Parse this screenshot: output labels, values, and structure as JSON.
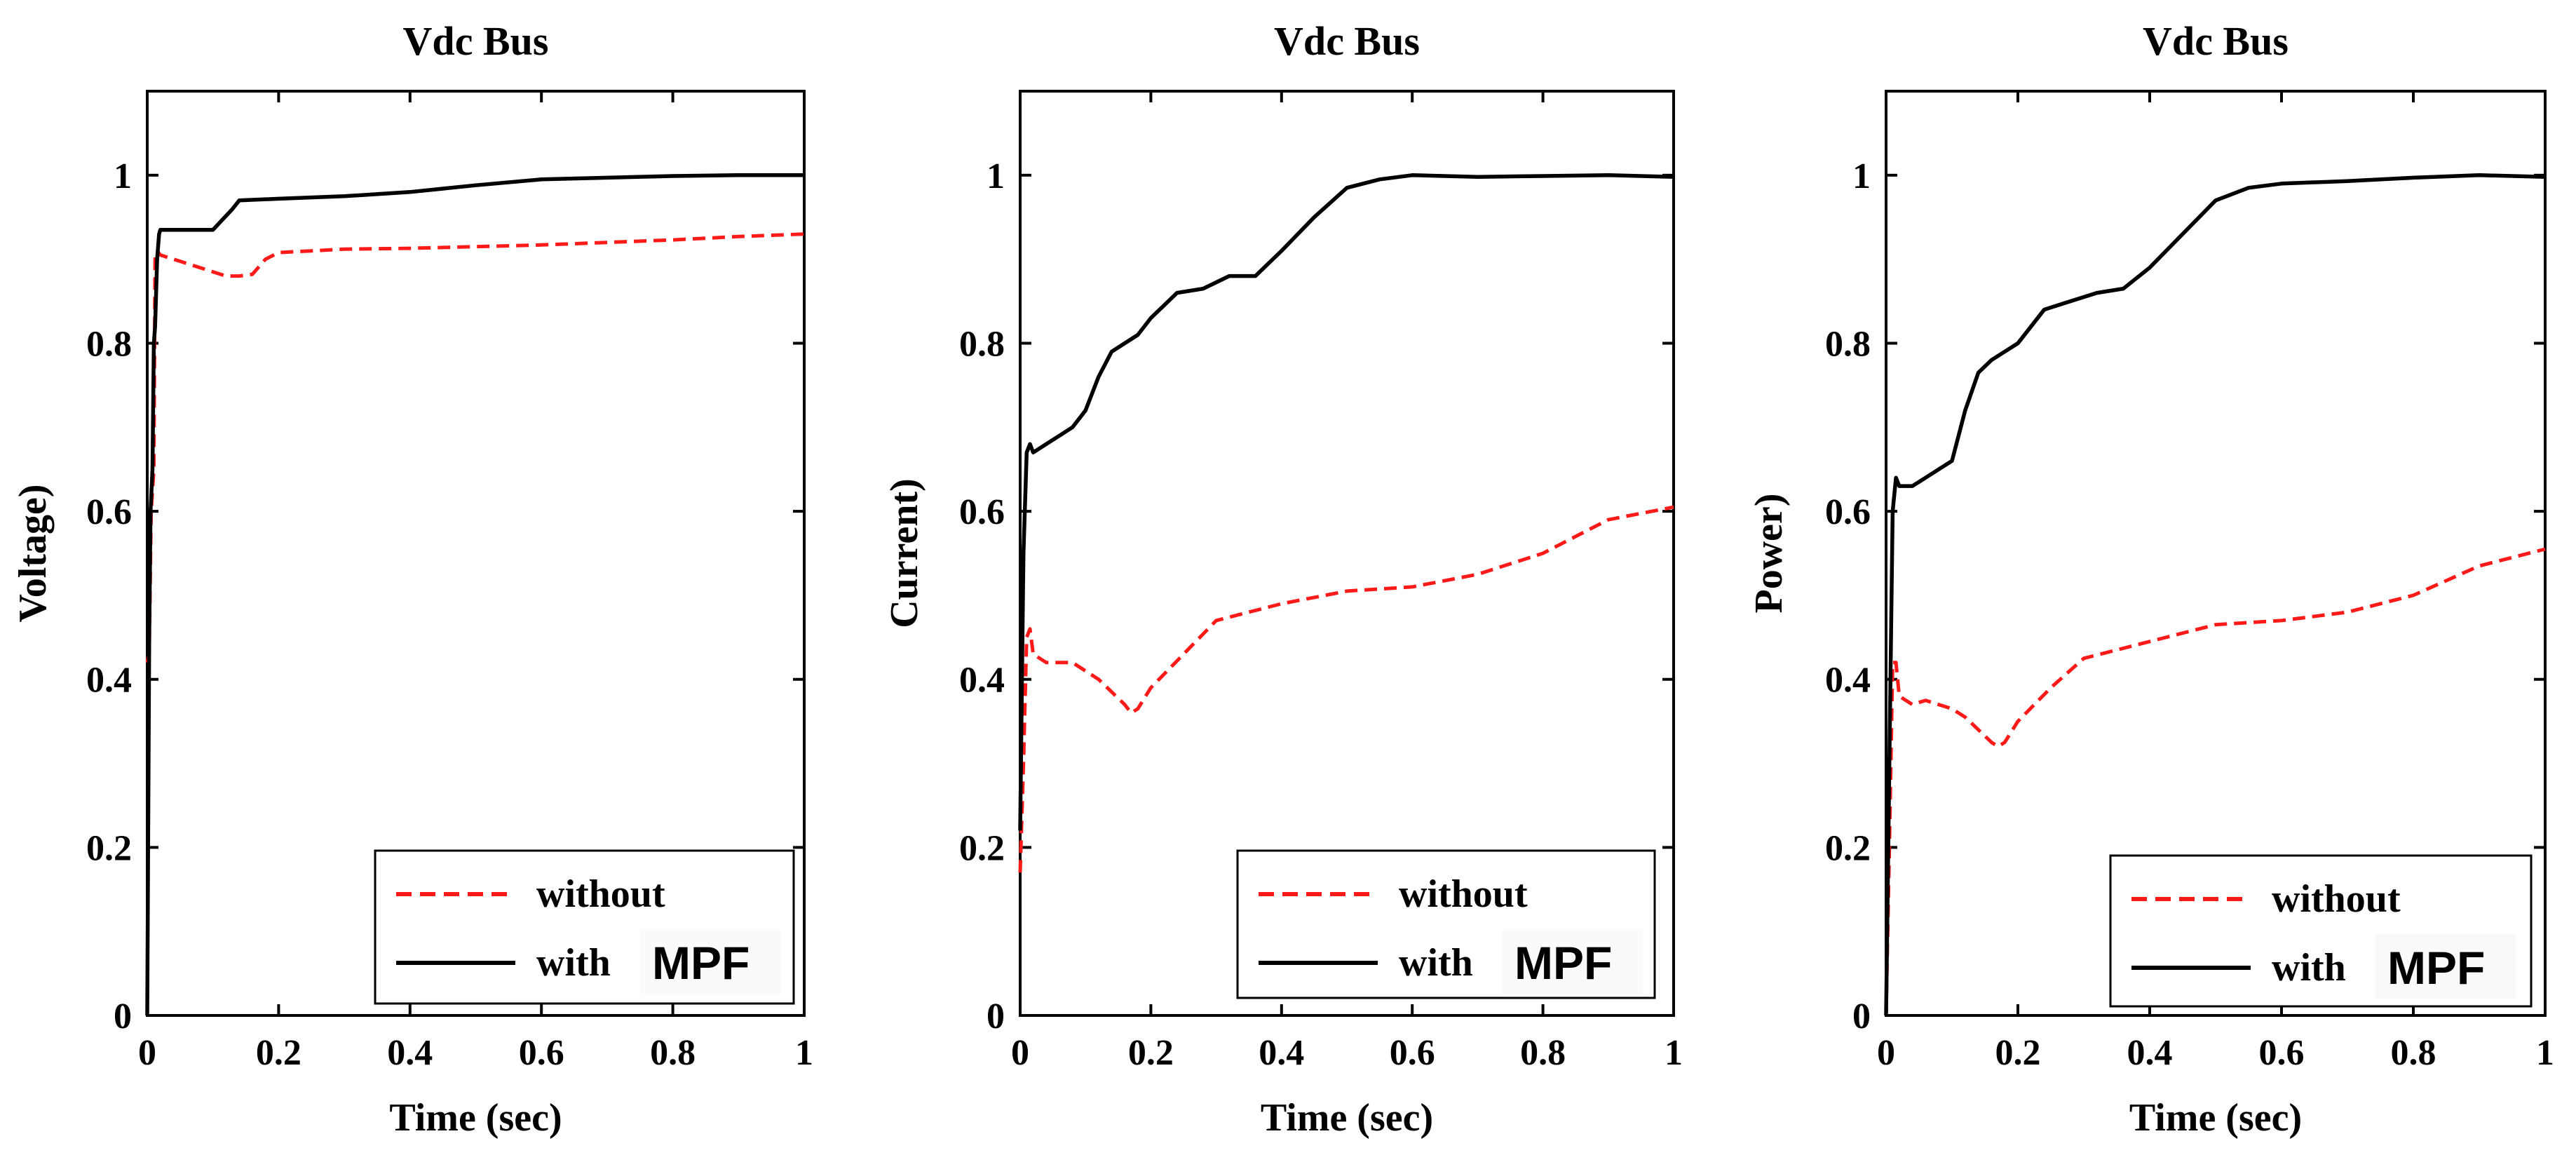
{
  "colors": {
    "without": "#ff1a1a",
    "with": "#000000",
    "background": "#ffffff",
    "axis": "#000000"
  },
  "chart_data": [
    {
      "type": "line",
      "title": "Vdc Bus",
      "xlabel": "Time (sec)",
      "ylabel": "Voltage)",
      "xlim": [
        0,
        1
      ],
      "ylim": [
        0,
        1.1
      ],
      "xticks": [
        0,
        0.2,
        0.4,
        0.6,
        0.8,
        1
      ],
      "xtick_labels": [
        "0",
        "0.2",
        "0.4",
        "0.6",
        "0.8",
        "1"
      ],
      "yticks": [
        0,
        0.2,
        0.4,
        0.6,
        0.8,
        1
      ],
      "ytick_labels": [
        "0",
        "0.2",
        "0.4",
        "0.6",
        "0.8",
        "1"
      ],
      "grid": false,
      "legend_position": "bottom-right",
      "legend_mpf_label": "MPF",
      "series": [
        {
          "name": "without",
          "style": "dashed",
          "color": "#ff1a1a",
          "x": [
            0,
            0.003,
            0.006,
            0.01,
            0.012,
            0.015,
            0.02,
            0.04,
            0.06,
            0.08,
            0.1,
            0.12,
            0.14,
            0.16,
            0.18,
            0.2,
            0.25,
            0.3,
            0.4,
            0.5,
            0.6,
            0.7,
            0.8,
            0.9,
            1.0
          ],
          "y": [
            0.42,
            0.43,
            0.6,
            0.65,
            0.9,
            0.91,
            0.905,
            0.9,
            0.895,
            0.89,
            0.885,
            0.88,
            0.88,
            0.882,
            0.9,
            0.908,
            0.91,
            0.912,
            0.913,
            0.915,
            0.917,
            0.92,
            0.923,
            0.927,
            0.93
          ]
        },
        {
          "name": "with",
          "style": "solid",
          "color": "#000000",
          "x": [
            0,
            0.003,
            0.005,
            0.008,
            0.01,
            0.012,
            0.015,
            0.018,
            0.02,
            0.03,
            0.06,
            0.1,
            0.13,
            0.14,
            0.2,
            0.3,
            0.4,
            0.5,
            0.6,
            0.7,
            0.8,
            0.9,
            1.0
          ],
          "y": [
            0,
            0.45,
            0.6,
            0.65,
            0.8,
            0.82,
            0.9,
            0.93,
            0.935,
            0.935,
            0.935,
            0.935,
            0.96,
            0.97,
            0.972,
            0.975,
            0.98,
            0.988,
            0.995,
            0.997,
            0.999,
            1.0,
            1.0
          ]
        }
      ]
    },
    {
      "type": "line",
      "title": "Vdc Bus",
      "xlabel": "Time (sec)",
      "ylabel": "Current)",
      "xlim": [
        0,
        1
      ],
      "ylim": [
        0,
        1.1
      ],
      "xticks": [
        0,
        0.2,
        0.4,
        0.6,
        0.8,
        1
      ],
      "xtick_labels": [
        "0",
        "0.2",
        "0.4",
        "0.6",
        "0.8",
        "1"
      ],
      "yticks": [
        0,
        0.2,
        0.4,
        0.6,
        0.8,
        1
      ],
      "ytick_labels": [
        "0",
        "0.2",
        "0.4",
        "0.6",
        "0.8",
        "1"
      ],
      "grid": false,
      "legend_position": "bottom-right",
      "legend_mpf_label": "MPF",
      "series": [
        {
          "name": "without",
          "style": "dashed",
          "color": "#ff1a1a",
          "x": [
            0,
            0.005,
            0.01,
            0.015,
            0.02,
            0.04,
            0.06,
            0.08,
            0.1,
            0.12,
            0.14,
            0.16,
            0.17,
            0.18,
            0.2,
            0.25,
            0.3,
            0.35,
            0.4,
            0.5,
            0.6,
            0.7,
            0.8,
            0.85,
            0.9,
            1.0
          ],
          "y": [
            0.17,
            0.3,
            0.45,
            0.46,
            0.43,
            0.42,
            0.42,
            0.42,
            0.41,
            0.4,
            0.385,
            0.37,
            0.36,
            0.365,
            0.39,
            0.43,
            0.47,
            0.48,
            0.49,
            0.505,
            0.51,
            0.525,
            0.55,
            0.57,
            0.59,
            0.605
          ]
        },
        {
          "name": "with",
          "style": "solid",
          "color": "#000000",
          "x": [
            0,
            0.005,
            0.01,
            0.015,
            0.02,
            0.04,
            0.06,
            0.08,
            0.1,
            0.12,
            0.14,
            0.16,
            0.18,
            0.2,
            0.24,
            0.28,
            0.32,
            0.36,
            0.4,
            0.45,
            0.5,
            0.55,
            0.6,
            0.7,
            0.8,
            0.9,
            1.0
          ],
          "y": [
            0.22,
            0.55,
            0.67,
            0.68,
            0.67,
            0.68,
            0.69,
            0.7,
            0.72,
            0.76,
            0.79,
            0.8,
            0.81,
            0.83,
            0.86,
            0.865,
            0.88,
            0.88,
            0.91,
            0.95,
            0.985,
            0.995,
            1.0,
            0.998,
            0.999,
            1.0,
            0.998
          ]
        }
      ]
    },
    {
      "type": "line",
      "title": "Vdc Bus",
      "xlabel": "Time (sec)",
      "ylabel": "Power)",
      "xlim": [
        0,
        1
      ],
      "ylim": [
        0,
        1.1
      ],
      "xticks": [
        0,
        0.2,
        0.4,
        0.6,
        0.8,
        1
      ],
      "xtick_labels": [
        "0",
        "0.2",
        "0.4",
        "0.6",
        "0.8",
        "1"
      ],
      "yticks": [
        0,
        0.2,
        0.4,
        0.6,
        0.8,
        1
      ],
      "ytick_labels": [
        "0",
        "0.2",
        "0.4",
        "0.6",
        "0.8",
        "1"
      ],
      "grid": false,
      "legend_position": "bottom-right",
      "legend_mpf_label": "MPF",
      "series": [
        {
          "name": "without",
          "style": "dashed",
          "color": "#ff1a1a",
          "x": [
            0,
            0.005,
            0.01,
            0.015,
            0.02,
            0.04,
            0.06,
            0.08,
            0.1,
            0.12,
            0.14,
            0.16,
            0.17,
            0.18,
            0.2,
            0.25,
            0.3,
            0.35,
            0.4,
            0.5,
            0.6,
            0.7,
            0.8,
            0.9,
            1.0
          ],
          "y": [
            0,
            0.2,
            0.42,
            0.42,
            0.38,
            0.37,
            0.375,
            0.37,
            0.365,
            0.355,
            0.34,
            0.325,
            0.32,
            0.325,
            0.35,
            0.39,
            0.425,
            0.435,
            0.445,
            0.465,
            0.47,
            0.48,
            0.5,
            0.535,
            0.555
          ]
        },
        {
          "name": "with",
          "style": "solid",
          "color": "#000000",
          "x": [
            0,
            0.005,
            0.01,
            0.015,
            0.02,
            0.04,
            0.06,
            0.08,
            0.1,
            0.12,
            0.14,
            0.16,
            0.18,
            0.2,
            0.24,
            0.28,
            0.32,
            0.36,
            0.4,
            0.45,
            0.5,
            0.55,
            0.6,
            0.7,
            0.8,
            0.9,
            1.0
          ],
          "y": [
            0,
            0.3,
            0.6,
            0.64,
            0.63,
            0.63,
            0.64,
            0.65,
            0.66,
            0.72,
            0.765,
            0.78,
            0.79,
            0.8,
            0.84,
            0.85,
            0.86,
            0.865,
            0.89,
            0.93,
            0.97,
            0.985,
            0.99,
            0.993,
            0.997,
            1.0,
            0.998
          ]
        }
      ]
    }
  ]
}
